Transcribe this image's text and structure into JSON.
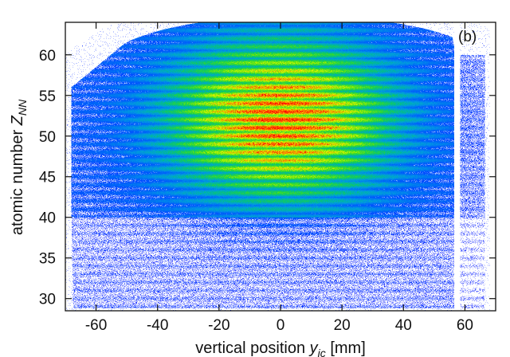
{
  "chart_data": {
    "type": "heatmap",
    "title": "",
    "panel_label": "(b)",
    "xlabel": {
      "main": "vertical position ",
      "var": "y",
      "sub": "ic",
      "unit": " [mm]"
    },
    "ylabel": {
      "main": "atomic number ",
      "var": "Z",
      "sub": "NN"
    },
    "xlim": [
      -70,
      70
    ],
    "ylim": [
      28.5,
      64
    ],
    "xticks": [
      -60,
      -40,
      -20,
      0,
      20,
      40,
      60
    ],
    "yticks": [
      30,
      35,
      40,
      45,
      50,
      55,
      60
    ],
    "grid": false,
    "colormap": [
      "#0000ff",
      "#0055ff",
      "#00a0e0",
      "#00c080",
      "#33dd22",
      "#99ee00",
      "#ffff00",
      "#ff6600",
      "#ff0000"
    ],
    "detector_gap_mm": [
      56.5,
      58.5
    ],
    "z_lines": {
      "min": 30,
      "max": 62,
      "peak_z": 52,
      "peak_x_mm": 0
    }
  }
}
